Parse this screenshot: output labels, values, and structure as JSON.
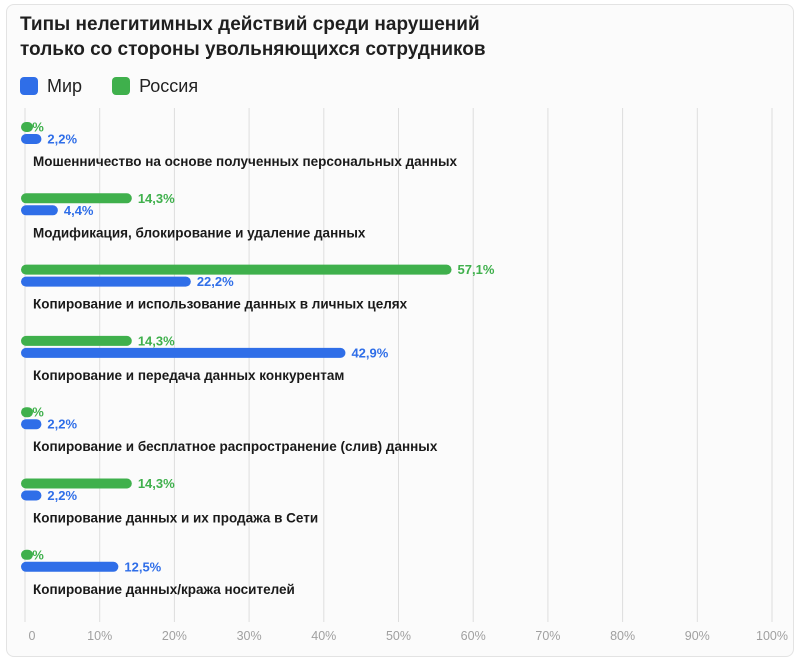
{
  "title": {
    "line1": "Типы нелегитимных действий среди нарушений",
    "line2": "только со стороны увольняющихся сотрудников"
  },
  "legend": [
    {
      "name": "Мир",
      "color": "#2f6ee8"
    },
    {
      "name": "Россия",
      "color": "#3fb04c"
    }
  ],
  "chart_data": {
    "type": "bar",
    "orientation": "horizontal",
    "title": "Типы нелегитимных действий среди нарушений только со стороны увольняющихся сотрудников",
    "categories": [
      "Мошенничество на основе полученных персональных данных",
      "Модификация, блокирование и удаление данных",
      "Копирование и использование данных в личных целях",
      "Копирование и передача данных конкурентам",
      "Копирование и бесплатное распространение (слив) данных",
      "Копирование данных и их продажа в Сети",
      "Копирование данных/кража носителей"
    ],
    "series": [
      {
        "name": "Россия",
        "color": "#3fb04c",
        "values": [
          0,
          14.3,
          57.1,
          14.3,
          0,
          14.3,
          0
        ],
        "labels": [
          "0%",
          "14,3%",
          "57,1%",
          "14,3%",
          "0%",
          "14,3%",
          "0%"
        ]
      },
      {
        "name": "Мир",
        "color": "#2f6ee8",
        "values": [
          2.2,
          4.4,
          22.2,
          42.9,
          2.2,
          2.2,
          12.5
        ],
        "labels": [
          "2,2%",
          "4,4%",
          "22,2%",
          "42,9%",
          "2,2%",
          "2,2%",
          "12,5%"
        ]
      }
    ],
    "xlim": [
      0,
      100
    ],
    "ticks": [
      "0",
      "10%",
      "20%",
      "30%",
      "40%",
      "50%",
      "60%",
      "70%",
      "80%",
      "90%",
      "100%"
    ],
    "grid": true,
    "legend_position": "top-left"
  }
}
